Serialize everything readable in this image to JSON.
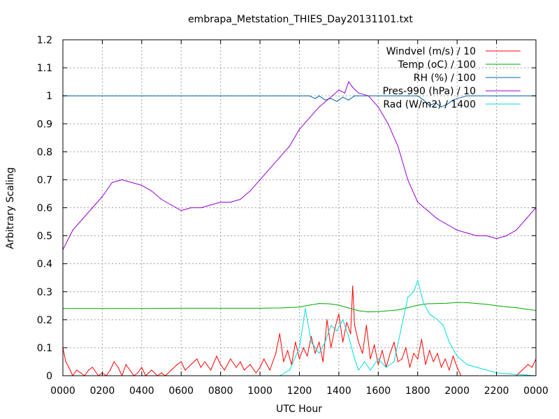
{
  "chart_data": {
    "type": "line",
    "title": "embrapa_Metstation_THIES_Day20131101.txt",
    "xlabel": "UTC Hour",
    "ylabel": "Arbitrary Scaling",
    "xlim": [
      0,
      24
    ],
    "ylim": [
      0,
      1.2
    ],
    "grid": true,
    "legend_position": "top-right",
    "x_ticks": [
      {
        "x": 0,
        "label": "0000"
      },
      {
        "x": 2,
        "label": "0200"
      },
      {
        "x": 4,
        "label": "0400"
      },
      {
        "x": 6,
        "label": "0600"
      },
      {
        "x": 8,
        "label": "0800"
      },
      {
        "x": 10,
        "label": "1000"
      },
      {
        "x": 12,
        "label": "1200"
      },
      {
        "x": 14,
        "label": "1400"
      },
      {
        "x": 16,
        "label": "1600"
      },
      {
        "x": 18,
        "label": "1800"
      },
      {
        "x": 20,
        "label": "2000"
      },
      {
        "x": 22,
        "label": "2200"
      },
      {
        "x": 24,
        "label": "0000"
      }
    ],
    "y_ticks": [
      {
        "y": 0,
        "label": "0"
      },
      {
        "y": 0.1,
        "label": "0.1"
      },
      {
        "y": 0.2,
        "label": "0.2"
      },
      {
        "y": 0.3,
        "label": "0.3"
      },
      {
        "y": 0.4,
        "label": "0.4"
      },
      {
        "y": 0.5,
        "label": "0.5"
      },
      {
        "y": 0.6,
        "label": "0.6"
      },
      {
        "y": 0.7,
        "label": "0.7"
      },
      {
        "y": 0.8,
        "label": "0.8"
      },
      {
        "y": 0.9,
        "label": "0.9"
      },
      {
        "y": 1,
        "label": "1"
      },
      {
        "y": 1.1,
        "label": "1.1"
      },
      {
        "y": 1.2,
        "label": "1.2"
      }
    ],
    "series": [
      {
        "name": "Windvel (m/s) / 10",
        "color": "#ff0000",
        "x": [
          0,
          0.15,
          0.3,
          0.5,
          0.7,
          0.9,
          1.1,
          1.3,
          1.5,
          1.8,
          2.0,
          2.2,
          2.4,
          2.6,
          2.8,
          3.0,
          3.2,
          3.4,
          3.6,
          3.8,
          4.0,
          4.2,
          4.5,
          4.8,
          5.0,
          5.2,
          5.5,
          5.8,
          6.0,
          6.2,
          6.5,
          6.8,
          7.0,
          7.2,
          7.5,
          7.8,
          8.0,
          8.2,
          8.5,
          8.8,
          9.0,
          9.2,
          9.5,
          9.8,
          10.0,
          10.2,
          10.5,
          10.8,
          11.0,
          11.2,
          11.4,
          11.6,
          11.8,
          12.0,
          12.2,
          12.4,
          12.6,
          12.8,
          13.0,
          13.2,
          13.4,
          13.6,
          13.8,
          14.0,
          14.2,
          14.4,
          14.6,
          14.7,
          14.8,
          15.0,
          15.2,
          15.4,
          15.6,
          15.8,
          16.0,
          16.2,
          16.4,
          16.6,
          16.8,
          17.0,
          17.2,
          17.4,
          17.6,
          17.8,
          18.0,
          18.2,
          18.4,
          18.6,
          18.8,
          19.0,
          19.2,
          19.4,
          19.6,
          19.8,
          20.0,
          20.2,
          20.5,
          21.0,
          21.5,
          22.0,
          22.5,
          23.0,
          23.3,
          23.6,
          23.8,
          24.0
        ],
        "y": [
          0.1,
          0.05,
          0.03,
          0.0,
          0.02,
          0.01,
          0.0,
          0.02,
          0.03,
          0.0,
          0.01,
          0.0,
          0.02,
          0.05,
          0.03,
          0.0,
          0.04,
          0.02,
          0.0,
          0.01,
          0.03,
          0.0,
          0.02,
          0.0,
          0.01,
          0.0,
          0.02,
          0.04,
          0.05,
          0.02,
          0.04,
          0.06,
          0.03,
          0.05,
          0.02,
          0.07,
          0.04,
          0.02,
          0.06,
          0.03,
          0.05,
          0.02,
          0.04,
          0.01,
          0.03,
          0.06,
          0.02,
          0.08,
          0.15,
          0.05,
          0.09,
          0.04,
          0.12,
          0.06,
          0.1,
          0.07,
          0.14,
          0.08,
          0.12,
          0.05,
          0.2,
          0.1,
          0.17,
          0.22,
          0.12,
          0.19,
          0.15,
          0.32,
          0.18,
          0.12,
          0.08,
          0.18,
          0.06,
          0.11,
          0.04,
          0.09,
          0.03,
          0.08,
          0.12,
          0.05,
          0.06,
          0.1,
          0.03,
          0.08,
          0.06,
          0.13,
          0.04,
          0.09,
          0.05,
          0.08,
          0.03,
          0.06,
          0.02,
          0.07,
          0.03,
          0.0,
          0.0,
          0.0,
          0.0,
          0.0,
          0.0,
          0.0,
          0.02,
          0.04,
          0.03,
          0.06
        ]
      },
      {
        "name": "Temp (oC) / 100",
        "color": "#00aa00",
        "x": [
          0,
          2,
          4,
          6,
          8,
          10,
          11,
          12,
          12.5,
          13,
          13.5,
          14,
          14.5,
          15,
          15.5,
          16,
          16.5,
          17,
          17.5,
          18,
          18.5,
          19,
          19.5,
          20,
          20.5,
          21,
          21.5,
          22,
          22.5,
          23,
          23.5,
          24
        ],
        "y": [
          0.24,
          0.24,
          0.24,
          0.241,
          0.241,
          0.241,
          0.242,
          0.245,
          0.252,
          0.258,
          0.257,
          0.252,
          0.242,
          0.232,
          0.228,
          0.229,
          0.232,
          0.235,
          0.243,
          0.252,
          0.257,
          0.258,
          0.259,
          0.262,
          0.261,
          0.258,
          0.255,
          0.25,
          0.246,
          0.243,
          0.238,
          0.233
        ]
      },
      {
        "name": "RH (%) / 100",
        "color": "#0060ad",
        "x": [
          0,
          12.5,
          12.8,
          13.0,
          13.3,
          13.6,
          13.9,
          14.2,
          14.5,
          14.8,
          15.0,
          15.5,
          16.0,
          17.0,
          17.5,
          18.0,
          18.3,
          18.6,
          18.9,
          19.2,
          19.5,
          19.8,
          20.0,
          20.5,
          24
        ],
        "y": [
          1.0,
          1.0,
          0.99,
          1.0,
          0.985,
          0.99,
          0.98,
          0.995,
          0.985,
          1.0,
          1.0,
          1.0,
          1.0,
          1.0,
          1.0,
          1.0,
          0.985,
          0.965,
          0.975,
          0.96,
          0.97,
          0.985,
          0.99,
          1.0,
          1.0
        ]
      },
      {
        "name": "Pres-990 (hPa) / 10",
        "color": "#9400d3",
        "x": [
          0,
          0.5,
          1.0,
          1.5,
          2.0,
          2.5,
          3.0,
          3.5,
          4.0,
          4.5,
          5.0,
          5.5,
          6.0,
          6.5,
          7.0,
          7.5,
          8.0,
          8.5,
          9.0,
          9.5,
          10.0,
          10.5,
          11.0,
          11.5,
          12.0,
          12.5,
          13.0,
          13.5,
          14.0,
          14.3,
          14.5,
          14.7,
          15.0,
          15.5,
          16.0,
          16.5,
          17.0,
          17.5,
          18.0,
          18.5,
          19.0,
          19.5,
          20.0,
          20.5,
          21.0,
          21.5,
          22.0,
          22.5,
          23.0,
          23.5,
          24.0
        ],
        "y": [
          0.45,
          0.52,
          0.56,
          0.6,
          0.64,
          0.69,
          0.7,
          0.69,
          0.68,
          0.66,
          0.63,
          0.61,
          0.59,
          0.6,
          0.6,
          0.61,
          0.62,
          0.62,
          0.63,
          0.66,
          0.7,
          0.74,
          0.78,
          0.82,
          0.88,
          0.92,
          0.96,
          0.99,
          1.02,
          1.01,
          1.05,
          1.03,
          1.01,
          1.0,
          0.96,
          0.9,
          0.82,
          0.7,
          0.62,
          0.59,
          0.56,
          0.54,
          0.52,
          0.51,
          0.5,
          0.5,
          0.49,
          0.5,
          0.52,
          0.56,
          0.6
        ]
      },
      {
        "name": "Rad (W/m2) / 1400",
        "color": "#00dddd",
        "x": [
          0,
          10,
          11.0,
          11.5,
          12.0,
          12.3,
          12.6,
          13.0,
          13.3,
          13.6,
          13.9,
          14.2,
          14.5,
          14.8,
          15.0,
          15.3,
          15.6,
          16.0,
          16.4,
          16.8,
          17.2,
          17.5,
          17.8,
          18.0,
          18.3,
          18.6,
          19.0,
          19.3,
          19.6,
          20.0,
          20.5,
          21.0,
          21.5,
          22.0,
          24.0
        ],
        "y": [
          0.0,
          0.0,
          0.0,
          0.02,
          0.1,
          0.24,
          0.12,
          0.08,
          0.12,
          0.18,
          0.16,
          0.2,
          0.14,
          0.06,
          0.02,
          0.05,
          0.02,
          0.06,
          0.03,
          0.05,
          0.18,
          0.28,
          0.3,
          0.34,
          0.26,
          0.22,
          0.2,
          0.18,
          0.12,
          0.07,
          0.04,
          0.03,
          0.02,
          0.01,
          0.0
        ]
      }
    ]
  }
}
